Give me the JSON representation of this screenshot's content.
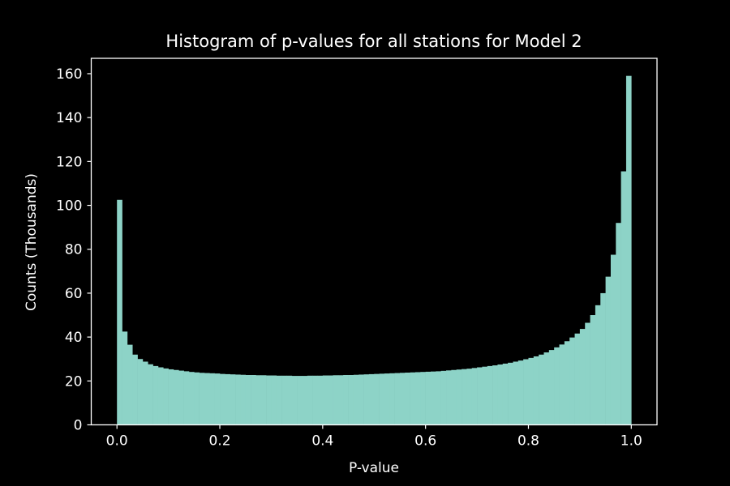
{
  "chart_data": {
    "type": "bar",
    "title": "Histogram of p-values for all stations for Model 2",
    "xlabel": "P-value",
    "ylabel": "Counts (Thousands)",
    "xlim": [
      -0.05,
      1.05
    ],
    "ylim": [
      0,
      167
    ],
    "x_ticks": [
      0.0,
      0.2,
      0.4,
      0.6,
      0.8,
      1.0
    ],
    "x_tick_labels": [
      "0.0",
      "0.2",
      "0.4",
      "0.6",
      "0.8",
      "1.0"
    ],
    "y_ticks": [
      0,
      20,
      40,
      60,
      80,
      100,
      120,
      140,
      160
    ],
    "y_tick_labels": [
      "0",
      "20",
      "40",
      "60",
      "80",
      "100",
      "120",
      "140",
      "160"
    ],
    "bin_start": 0.0,
    "bin_width": 0.01,
    "bar_color": "#8dd3c7",
    "background_color": "#000000",
    "foreground_color": "#ffffff",
    "grid": false,
    "values": [
      102.5,
      42.5,
      36.5,
      32.0,
      30.0,
      28.8,
      27.6,
      26.8,
      26.2,
      25.7,
      25.3,
      25.0,
      24.7,
      24.4,
      24.1,
      23.9,
      23.7,
      23.6,
      23.5,
      23.4,
      23.2,
      23.1,
      23.0,
      22.9,
      22.8,
      22.7,
      22.7,
      22.6,
      22.6,
      22.5,
      22.5,
      22.4,
      22.4,
      22.4,
      22.3,
      22.3,
      22.3,
      22.4,
      22.4,
      22.4,
      22.5,
      22.5,
      22.6,
      22.6,
      22.7,
      22.7,
      22.8,
      22.9,
      23.0,
      23.1,
      23.2,
      23.3,
      23.4,
      23.5,
      23.6,
      23.7,
      23.8,
      23.9,
      24.0,
      24.1,
      24.2,
      24.3,
      24.4,
      24.6,
      24.8,
      25.0,
      25.2,
      25.4,
      25.6,
      25.9,
      26.2,
      26.5,
      26.8,
      27.1,
      27.5,
      27.9,
      28.3,
      28.8,
      29.3,
      29.9,
      30.5,
      31.2,
      32.0,
      33.0,
      34.1,
      35.3,
      36.6,
      38.1,
      39.8,
      41.6,
      43.7,
      46.5,
      50.0,
      54.5,
      60.0,
      67.5,
      77.5,
      92.0,
      115.5,
      159.0
    ]
  }
}
